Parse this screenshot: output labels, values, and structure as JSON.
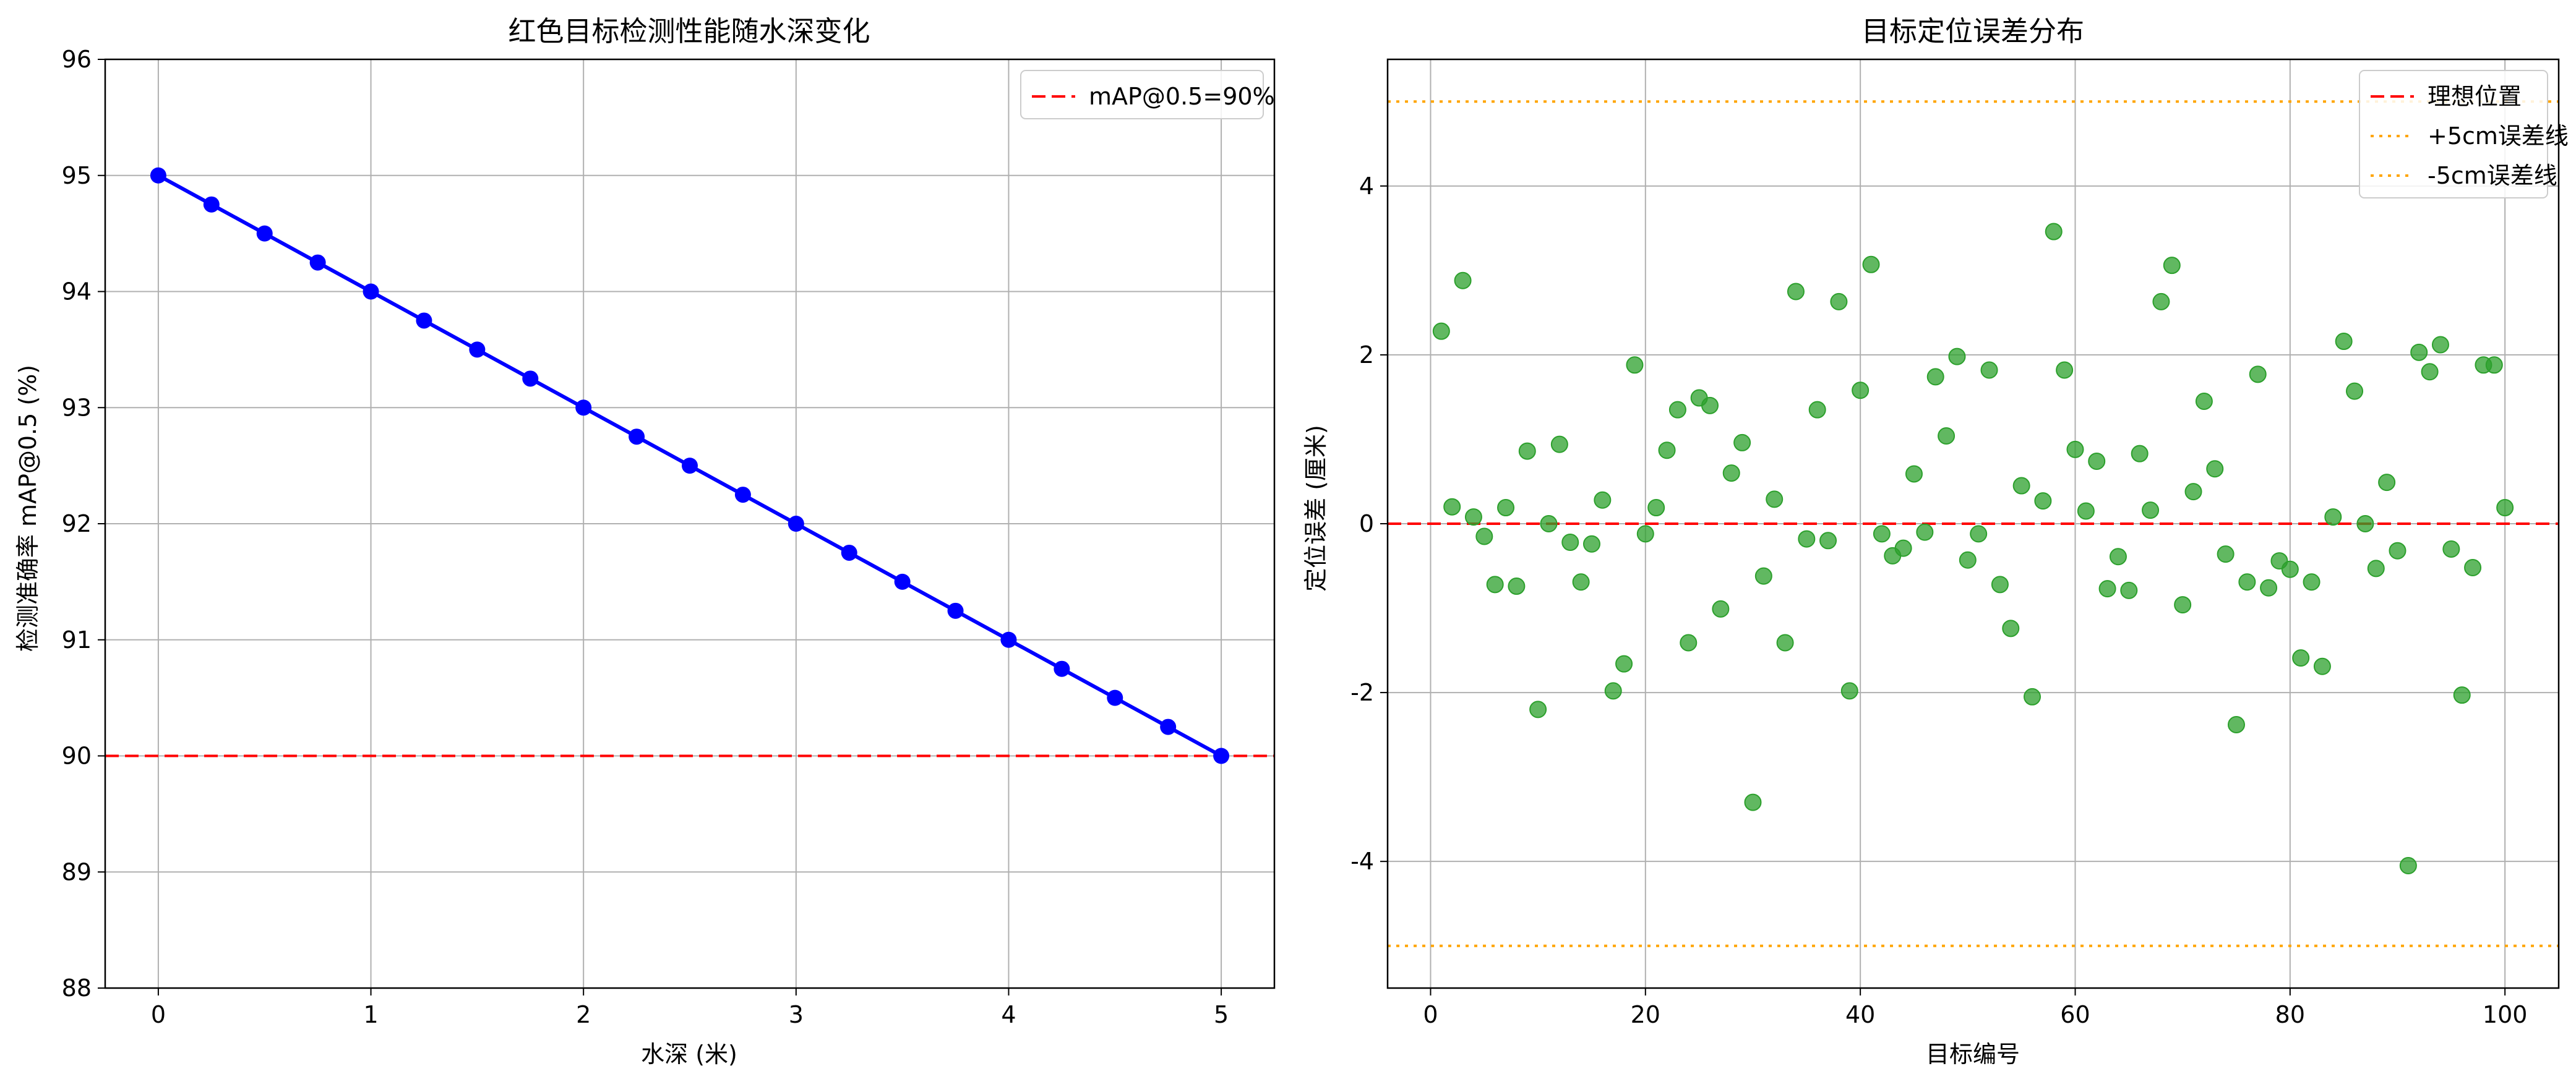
{
  "chart_data": [
    {
      "type": "line",
      "title": "红色目标检测性能随水深变化",
      "xlabel": "水深 (米)",
      "ylabel": "检测准确率 mAP@0.5 (%)",
      "xlim": [
        -0.25,
        5.25
      ],
      "ylim": [
        88,
        96
      ],
      "x_ticks": [
        0,
        1,
        2,
        3,
        4,
        5
      ],
      "y_ticks": [
        88,
        89,
        90,
        91,
        92,
        93,
        94,
        95,
        96
      ],
      "grid": true,
      "legend_position": "upper right",
      "series": [
        {
          "color": "#0000ff",
          "marker": "circle",
          "x": [
            0,
            0.25,
            0.5,
            0.75,
            1,
            1.25,
            1.5,
            1.75,
            2,
            2.25,
            2.5,
            2.75,
            3,
            3.25,
            3.5,
            3.75,
            4,
            4.25,
            4.5,
            4.75,
            5
          ],
          "y": [
            95,
            94.75,
            94.5,
            94.25,
            94,
            93.75,
            93.5,
            93.25,
            93,
            92.75,
            92.5,
            92.25,
            92,
            91.75,
            91.5,
            91.25,
            91,
            90.75,
            90.5,
            90.25,
            90
          ]
        }
      ],
      "reference_lines": [
        {
          "name": "mAP@0.5=90%",
          "y": 90,
          "color": "#ff0000",
          "style": "dashed"
        }
      ]
    },
    {
      "type": "scatter",
      "title": "目标定位误差分布",
      "xlabel": "目标编号",
      "ylabel": "定位误差 (厘米)",
      "xlim": [
        -4,
        105
      ],
      "ylim": [
        -5.5,
        5.5
      ],
      "x_ticks": [
        0,
        20,
        40,
        60,
        80,
        100
      ],
      "y_ticks": [
        -4,
        -2,
        0,
        2,
        4
      ],
      "grid": true,
      "legend_position": "upper right",
      "series": [
        {
          "color": "#2ca02c",
          "marker": "circle",
          "x": [
            1,
            2,
            3,
            4,
            5,
            6,
            7,
            8,
            9,
            10,
            11,
            12,
            13,
            14,
            15,
            16,
            17,
            18,
            19,
            20,
            21,
            22,
            23,
            24,
            25,
            26,
            27,
            28,
            29,
            30,
            31,
            32,
            33,
            34,
            35,
            36,
            37,
            38,
            39,
            40,
            41,
            42,
            43,
            44,
            45,
            46,
            47,
            48,
            49,
            50,
            51,
            52,
            53,
            54,
            55,
            56,
            57,
            58,
            59,
            60,
            61,
            62,
            63,
            64,
            65,
            66,
            67,
            68,
            69,
            70,
            71,
            72,
            73,
            74,
            75,
            76,
            77,
            78,
            79,
            80,
            81,
            82,
            83,
            84,
            85,
            86,
            87,
            88,
            89,
            90,
            91,
            92,
            93,
            94,
            95,
            96,
            97,
            98,
            99,
            100
          ],
          "y": [
            2.28,
            0.2,
            2.88,
            0.08,
            -0.15,
            -0.72,
            0.19,
            -0.74,
            0.86,
            -2.2,
            0.0,
            0.94,
            -0.22,
            -0.69,
            -0.24,
            0.28,
            -1.98,
            -1.66,
            1.88,
            -0.12,
            0.19,
            0.87,
            1.35,
            -1.41,
            1.49,
            1.4,
            -1.01,
            0.6,
            0.96,
            -3.3,
            -0.62,
            0.29,
            -1.41,
            2.75,
            -0.18,
            1.35,
            -0.2,
            2.63,
            -1.98,
            1.58,
            3.07,
            -0.12,
            -0.38,
            -0.29,
            0.59,
            -0.1,
            1.74,
            1.04,
            1.98,
            -0.43,
            -0.12,
            1.82,
            -0.72,
            -1.24,
            0.45,
            -2.05,
            0.27,
            3.46,
            1.82,
            0.88,
            0.15,
            0.74,
            -0.77,
            -0.39,
            -0.79,
            0.83,
            0.16,
            2.63,
            3.06,
            -0.96,
            0.38,
            1.45,
            0.65,
            -0.36,
            -2.38,
            -0.69,
            1.77,
            -0.76,
            -0.44,
            -0.54,
            -1.59,
            -0.69,
            -1.69,
            0.08,
            2.16,
            1.57,
            0.0,
            -0.53,
            0.49,
            -0.32,
            -4.05,
            2.03,
            1.8,
            2.12,
            -0.3,
            -2.03,
            -0.52,
            1.88,
            1.88,
            0.19
          ]
        }
      ],
      "reference_lines": [
        {
          "name": "理想位置",
          "y": 0,
          "color": "#ff0000",
          "style": "dashed"
        },
        {
          "name": "+5cm误差线",
          "y": 5,
          "color": "#ffa500",
          "style": "dotted"
        },
        {
          "name": "-5cm误差线",
          "y": -5,
          "color": "#ffa500",
          "style": "dotted"
        }
      ]
    }
  ]
}
